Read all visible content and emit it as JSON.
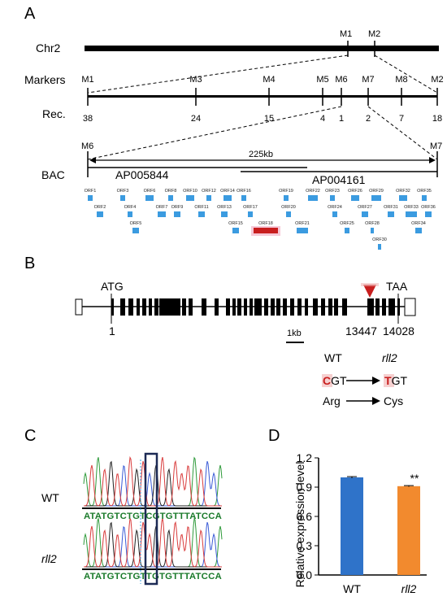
{
  "panels": {
    "a": "A",
    "b": "B",
    "c": "C",
    "d": "D"
  },
  "panel_a": {
    "chr_label": "Chr2",
    "chr_markers": [
      "M1",
      "M2"
    ],
    "markers_label": "Markers",
    "markers": [
      "M1",
      "M3",
      "M4",
      "M5",
      "M6",
      "M7",
      "M8",
      "M2"
    ],
    "rec_label": "Rec.",
    "rec_values": [
      "38",
      "24",
      "15",
      "4",
      "1",
      "2",
      "7",
      "18"
    ],
    "bac_ends": [
      "M6",
      "M7"
    ],
    "bac_label": "BAC",
    "span_label": "225kb",
    "bac_clones": [
      "AP005844",
      "AP004161"
    ],
    "orfs": [
      "ORF1",
      "ORF2",
      "ORF3",
      "ORF4",
      "ORF5",
      "ORF6",
      "ORF7",
      "ORF8",
      "ORF9",
      "ORF10",
      "ORF11",
      "ORF12",
      "ORF13",
      "ORF14",
      "ORF15",
      "ORF16",
      "ORF17",
      "ORF18",
      "ORF19",
      "ORF20",
      "ORF21",
      "ORF22",
      "ORF23",
      "ORF24",
      "ORF25",
      "ORF26",
      "ORF27",
      "ORF28",
      "ORF29",
      "ORF30",
      "ORF31",
      "ORF32",
      "ORF33",
      "ORF34",
      "ORF35",
      "ORF36"
    ],
    "orf_color": "#3b9be0",
    "candidate_color": "#c81e1e"
  },
  "panel_b": {
    "start_codon": "ATG",
    "stop_codon": "TAA",
    "pos_start": "1",
    "pos_mut": "13447",
    "pos_end": "14028",
    "scale_label": "1kb",
    "wt_label": "WT",
    "mut_label": "rll2",
    "wt_codon_first": "C",
    "wt_codon_rest": "GT",
    "mut_codon_first": "T",
    "mut_codon_rest": "GT",
    "wt_aa": "Arg",
    "mut_aa": "Cys",
    "mutation_color": "#c81e1e"
  },
  "panel_c": {
    "wt_label": "WT",
    "mut_label": "rll2",
    "wt_seq": "ATATGTCTGTCGTGTTTATCCA",
    "mut_seq": "ATATGTCTGTTGTGTTTATCCA"
  },
  "chart_data": {
    "type": "bar",
    "categories": [
      "WT",
      "rll2"
    ],
    "values": [
      1.0,
      0.91
    ],
    "errors": [
      0.008,
      0.006
    ],
    "colors": [
      "#2f73c9",
      "#f28a2e"
    ],
    "ylabel": "Relative expression level",
    "ylim": [
      0.0,
      1.2
    ],
    "yticks": [
      "0.0",
      "0.3",
      "0.6",
      "0.9",
      "1.2"
    ],
    "annotation": "**"
  }
}
